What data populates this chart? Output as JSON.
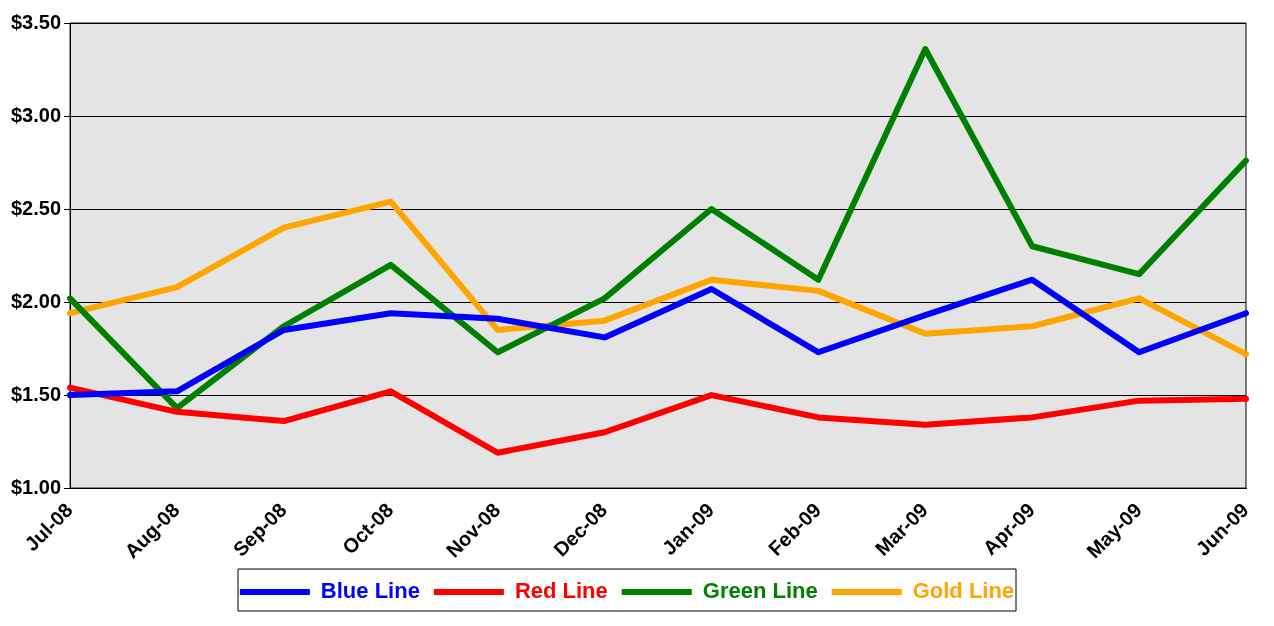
{
  "chart_data": {
    "type": "line",
    "categories": [
      "Jul-08",
      "Aug-08",
      "Sep-08",
      "Oct-08",
      "Nov-08",
      "Dec-08",
      "Jan-09",
      "Feb-09",
      "Mar-09",
      "Apr-09",
      "May-09",
      "Jun-09"
    ],
    "series": [
      {
        "name": "Blue Line",
        "color": "#0000ff",
        "values": [
          1.5,
          1.52,
          1.85,
          1.94,
          1.91,
          1.81,
          2.07,
          1.73,
          1.93,
          2.12,
          1.73,
          1.94
        ]
      },
      {
        "name": "Red Line",
        "color": "#ff0000",
        "values": [
          1.54,
          1.41,
          1.36,
          1.52,
          1.19,
          1.3,
          1.5,
          1.38,
          1.34,
          1.38,
          1.47,
          1.48
        ]
      },
      {
        "name": "Green Line",
        "color": "#008000",
        "values": [
          2.02,
          1.43,
          1.87,
          2.2,
          1.73,
          2.02,
          2.5,
          2.12,
          3.36,
          2.3,
          2.15,
          2.76
        ]
      },
      {
        "name": "Gold Line",
        "color": "#ffa500",
        "values": [
          1.94,
          2.08,
          2.4,
          2.54,
          1.85,
          1.9,
          2.12,
          2.06,
          1.83,
          1.87,
          2.02,
          1.72
        ]
      }
    ],
    "ylim": [
      1,
      3.5
    ],
    "yticks": [
      {
        "value": 1,
        "label": "$1.00"
      },
      {
        "value": 1.5,
        "label": "$1.50"
      },
      {
        "value": 2,
        "label": "$2.00"
      },
      {
        "value": 2.5,
        "label": "$2.50"
      },
      {
        "value": 3,
        "label": "$3.00"
      },
      {
        "value": 3.5,
        "label": "$3.50"
      }
    ],
    "grid": "y",
    "legend": "bottom",
    "marker": "none",
    "line_style": "solid"
  }
}
